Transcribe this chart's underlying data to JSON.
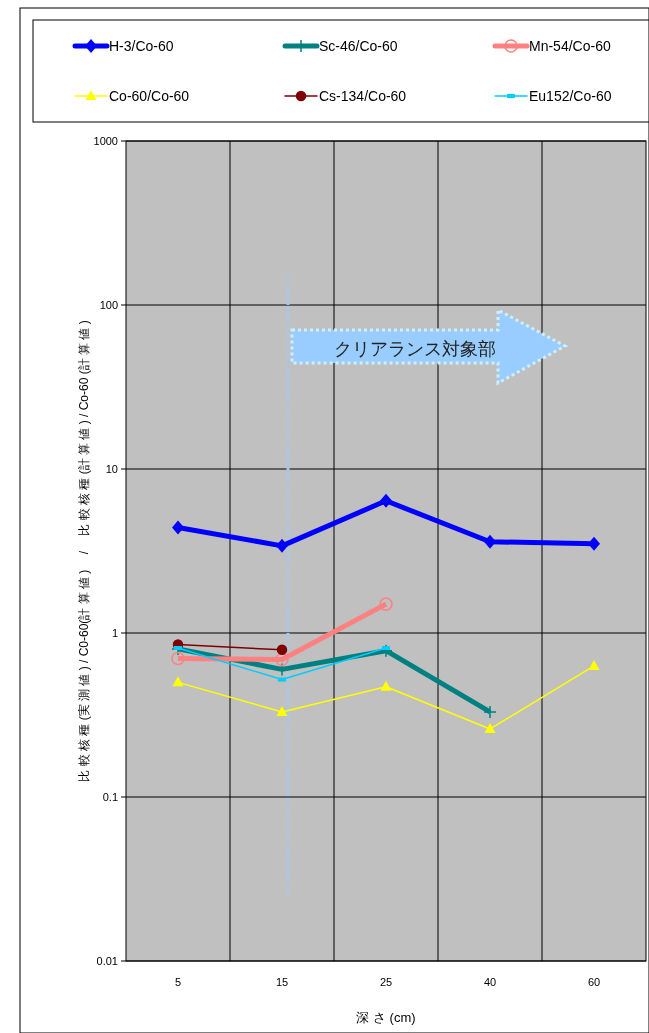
{
  "chart_data": {
    "type": "line",
    "xlabel": "深 さ (cm)",
    "ylabel": "比 較 核 種 (実 測 値 ) / C0-60(計 算 値 )　 /　 比 較 核 種 (計 算 値 ) / Co-60 (計 算 値 )",
    "categories": [
      "5",
      "15",
      "25",
      "40",
      "60"
    ],
    "series": [
      {
        "name": "H-3/Co-60",
        "color": "#0000ff",
        "marker": "diamond",
        "values": [
          4.4,
          3.4,
          6.4,
          3.6,
          3.5
        ]
      },
      {
        "name": "Sc-46/Co-60",
        "color": "#008080",
        "marker": "cross",
        "values": [
          0.8,
          0.6,
          0.78,
          0.33,
          null
        ]
      },
      {
        "name": "Mn-54/Co-60",
        "color": "#ff8080",
        "marker": "circle",
        "values": [
          0.7,
          0.69,
          1.5,
          null,
          null
        ]
      },
      {
        "name": "Co-60/Co-60",
        "color": "#ffff00",
        "marker": "triangle",
        "values": [
          0.5,
          0.33,
          0.47,
          0.26,
          0.63
        ]
      },
      {
        "name": "Cs-134/Co-60",
        "color": "#800000",
        "marker": "circle",
        "values": [
          0.85,
          0.79,
          null,
          null,
          null
        ]
      },
      {
        "name": "Eu152/Co-60",
        "color": "#00ccff",
        "marker": "square",
        "values": [
          0.81,
          0.52,
          0.81,
          null,
          null
        ]
      }
    ],
    "log": true,
    "ylim": [
      0.01,
      1000
    ],
    "yticks": [
      0.01,
      0.1,
      1,
      10,
      100,
      1000
    ],
    "grid": true,
    "legend": "top",
    "ref_lines": [
      {
        "axis": "x",
        "value": "15",
        "color": "#99ccff",
        "line_style": "dotted"
      }
    ],
    "annotations": [
      "クリアランス対象部"
    ]
  }
}
